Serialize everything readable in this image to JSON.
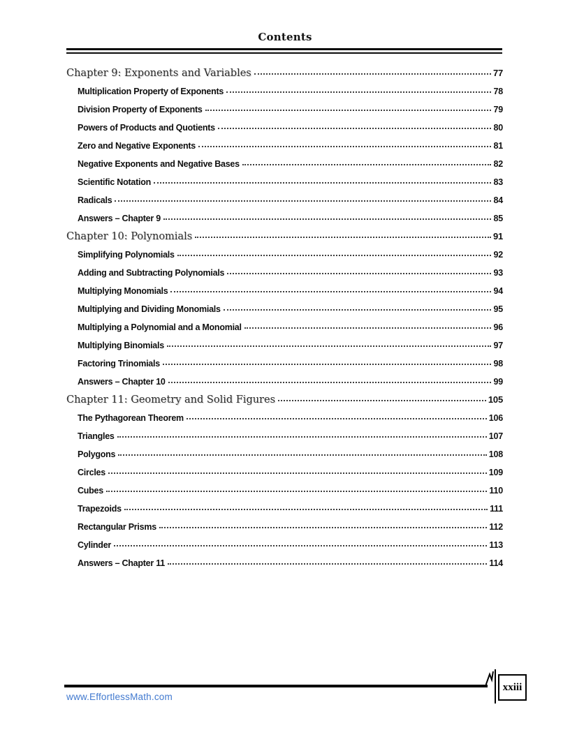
{
  "header": {
    "title": "Contents"
  },
  "toc": {
    "chapters": [
      {
        "title": "Chapter 9: Exponents and Variables",
        "page": "77",
        "items": [
          {
            "title": "Multiplication Property of Exponents",
            "page": "78"
          },
          {
            "title": "Division Property of Exponents",
            "page": "79"
          },
          {
            "title": "Powers of Products and Quotients",
            "page": "80"
          },
          {
            "title": "Zero and Negative Exponents",
            "page": "81"
          },
          {
            "title": "Negative Exponents and Negative Bases",
            "page": "82"
          },
          {
            "title": "Scientific Notation",
            "page": "83"
          },
          {
            "title": "Radicals",
            "page": "84"
          },
          {
            "title": "Answers – Chapter 9",
            "page": "85"
          }
        ]
      },
      {
        "title": "Chapter 10: Polynomials",
        "page": "91",
        "items": [
          {
            "title": "Simplifying Polynomials",
            "page": "92"
          },
          {
            "title": "Adding and Subtracting Polynomials",
            "page": "93"
          },
          {
            "title": "Multiplying Monomials",
            "page": "94"
          },
          {
            "title": "Multiplying and Dividing Monomials",
            "page": "95"
          },
          {
            "title": "Multiplying a Polynomial and a Monomial",
            "page": "96"
          },
          {
            "title": "Multiplying Binomials",
            "page": "97"
          },
          {
            "title": "Factoring Trinomials",
            "page": "98"
          },
          {
            "title": "Answers – Chapter 10",
            "page": "99"
          }
        ]
      },
      {
        "title": "Chapter 11: Geometry and Solid Figures",
        "page": "105",
        "items": [
          {
            "title": "The Pythagorean Theorem",
            "page": "106"
          },
          {
            "title": "Triangles",
            "page": "107"
          },
          {
            "title": "Polygons",
            "page": "108"
          },
          {
            "title": "Circles",
            "page": "109"
          },
          {
            "title": "Cubes",
            "page": "110"
          },
          {
            "title": "Trapezoids",
            "page": "111"
          },
          {
            "title": "Rectangular Prisms",
            "page": "112"
          },
          {
            "title": "Cylinder",
            "page": "113"
          },
          {
            "title": "Answers – Chapter 11",
            "page": "114"
          }
        ]
      }
    ]
  },
  "footer": {
    "website": "www.EffortlessMath.com",
    "page_number": "xxiii"
  },
  "colors": {
    "link_blue": "#4179cf",
    "rule_black": "#000000",
    "dot_leader": "#3d3d3d"
  }
}
